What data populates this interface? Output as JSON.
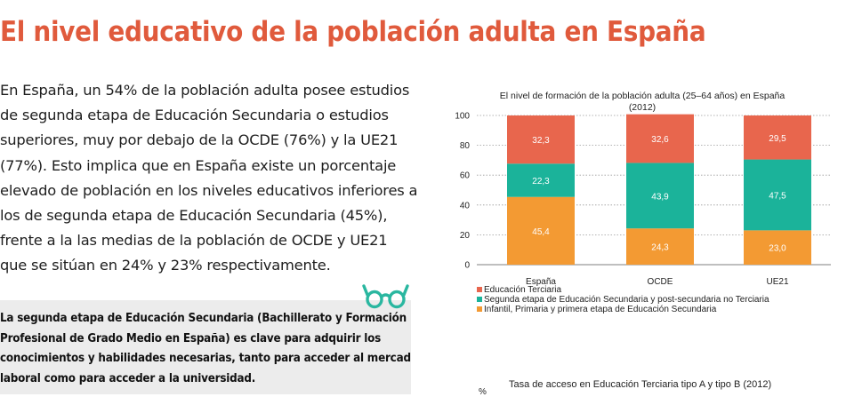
{
  "page": {
    "title": "El nivel educativo de la población adulta en España",
    "intro": "En España, un 54% de la población adulta posee estudios de segunda etapa de Educación Secundaria o estudios superiores, muy por debajo de la OCDE (76%) y la UE21 (77%). Esto implica que en España existe un porcentaje elevado de población en los niveles educativos inferiores a los de segunda etapa de Educación Secundaria (45%), frente a la las medias de la población de OCDE y UE21 que se sitúan en 24% y 23% respectivamente.",
    "callout": "La segunda etapa de Educación Secundaria (Bachillerato y Formación Profesional de Grado Medio en España) es clave para adquirir los conocimientos y habilidades necesarias, tanto para acceder al mercado laboral como para acceder a la universidad.",
    "callout_icon": "glasses-icon",
    "chart2_title": "Tasa de acceso en Educación Terciaria tipo A y tipo B (2012)",
    "chart2_ylabel": "%"
  },
  "colors": {
    "title": "#e05a3c",
    "terciaria": "#e8664d",
    "segunda": "#1bb39a",
    "infantil": "#f39a33",
    "glasses": "#2ab7a0"
  },
  "chart_data": {
    "type": "bar",
    "stacked": true,
    "title_lines": [
      "El nivel de formación de la población adulta (25–64 años) en España",
      "(2012)"
    ],
    "categories": [
      "España",
      "OCDE",
      "UE21"
    ],
    "series": [
      {
        "name": "Infantil, Primaria y primera etapa de Educación Secundaria",
        "values": [
          45.4,
          24.3,
          23.0
        ],
        "labels": [
          "45,4",
          "24,3",
          "23,0"
        ],
        "color_key": "infantil"
      },
      {
        "name": "Segunda etapa de Educación Secundaria y post-secundaria no Terciaria",
        "values": [
          22.3,
          43.9,
          47.5
        ],
        "labels": [
          "22,3",
          "43,9",
          "47,5"
        ],
        "color_key": "segunda"
      },
      {
        "name": "Educación Terciaria",
        "values": [
          32.3,
          32.6,
          29.5
        ],
        "labels": [
          "32,3",
          "32,6",
          "29,5"
        ],
        "color_key": "terciaria"
      }
    ],
    "legend_order": [
      2,
      1,
      0
    ],
    "ylim": [
      0,
      100
    ],
    "yticks": [
      0,
      20,
      40,
      60,
      80,
      100
    ],
    "grid": true,
    "legend_position": "bottom"
  }
}
